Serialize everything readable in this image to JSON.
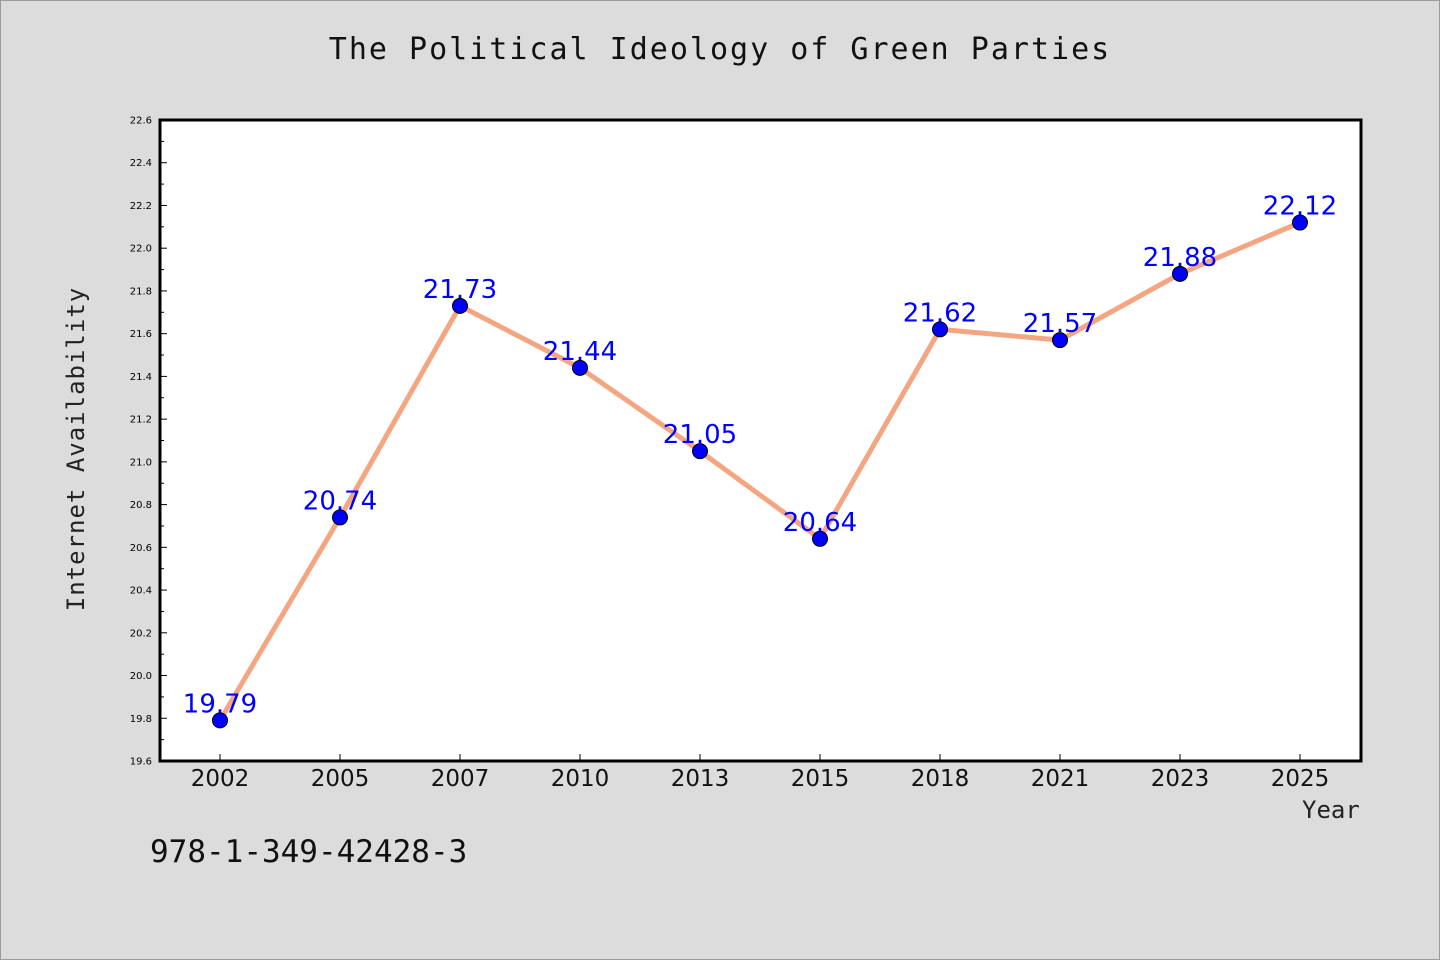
{
  "chart_data": {
    "type": "line",
    "title": "The Political Ideology of Green Parties",
    "xlabel": "Year",
    "ylabel": "Internet Availability",
    "categories": [
      "2002",
      "2005",
      "2007",
      "2010",
      "2013",
      "2015",
      "2018",
      "2021",
      "2023",
      "2025"
    ],
    "values": [
      19.79,
      20.74,
      21.73,
      21.44,
      21.05,
      20.64,
      21.62,
      21.57,
      21.88,
      22.12
    ],
    "data_labels": [
      "19.79",
      "20.74",
      "21.73",
      "21.44",
      "21.05",
      "20.64",
      "21.62",
      "21.57",
      "21.88",
      "22.12"
    ],
    "ylim": [
      19.6,
      22.6
    ],
    "yticks": [
      "19.6",
      "19.8",
      "20.0",
      "20.2",
      "20.4",
      "20.6",
      "20.8",
      "21.0",
      "21.2",
      "21.4",
      "21.6",
      "21.8",
      "22.0",
      "22.2",
      "22.4",
      "22.6"
    ],
    "grid": false,
    "colors": {
      "line": "#f4a582",
      "marker": "#0000ff",
      "label": "#0000ff",
      "background": "#dcdcdc",
      "plot": "#ffffff"
    }
  },
  "footer_text": "978-1-349-42428-3"
}
